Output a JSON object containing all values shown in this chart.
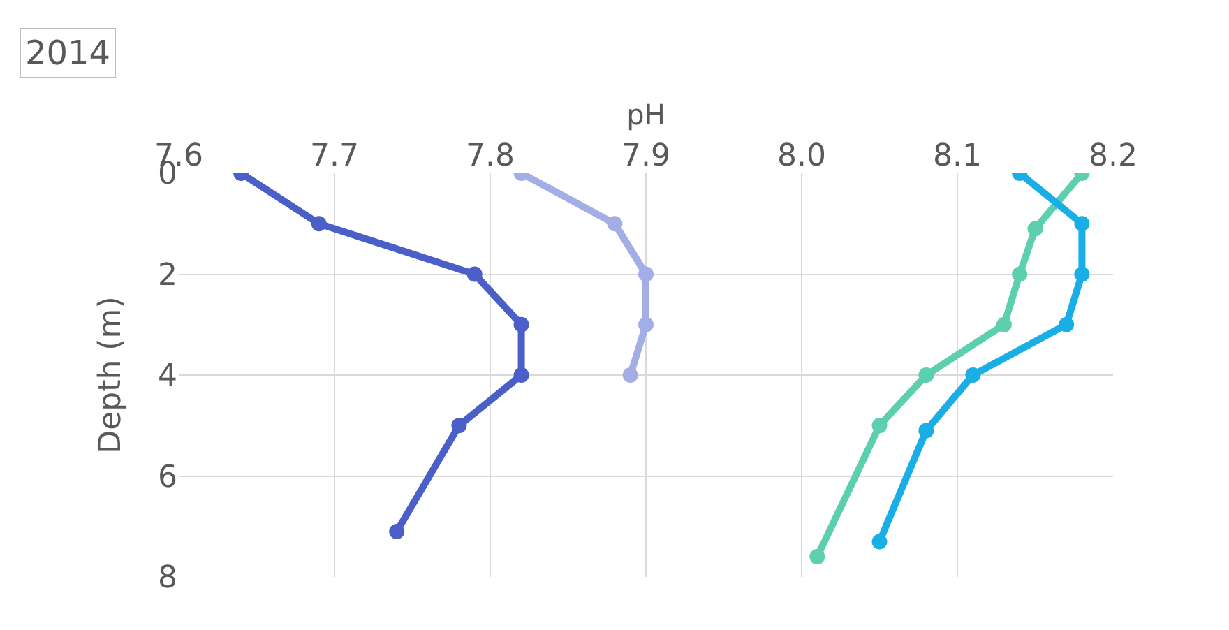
{
  "chart_data": {
    "type": "line",
    "xlabel": "pH",
    "ylabel": "Depth (m)",
    "annotations": [
      "2014"
    ],
    "xlim": [
      7.6,
      8.2
    ],
    "xticks": [
      {
        "value": 7.6,
        "label": "7.6"
      },
      {
        "value": 7.7,
        "label": "7.7"
      },
      {
        "value": 7.8,
        "label": "7.8"
      },
      {
        "value": 7.9,
        "label": "7.9"
      },
      {
        "value": 8.0,
        "label": "8.0"
      },
      {
        "value": 8.1,
        "label": "8.1"
      },
      {
        "value": 8.2,
        "label": "8.2"
      }
    ],
    "ylim": [
      8,
      0
    ],
    "yticks": [
      0,
      2,
      4,
      6,
      8
    ],
    "grid": true,
    "legend": false,
    "marker": "circle",
    "line_style": "solid",
    "series": [
      {
        "color": "#4a5fc7",
        "x": [
          7.64,
          7.69,
          7.79,
          7.82,
          7.82,
          7.78,
          7.74
        ],
        "values": [
          0,
          1,
          2,
          3,
          4,
          5,
          7.1
        ]
      },
      {
        "color": "#a3aee6",
        "x": [
          7.82,
          7.88,
          7.9,
          7.9,
          7.89
        ],
        "values": [
          0,
          1,
          2,
          3,
          4
        ]
      },
      {
        "color": "#5ccfae",
        "x": [
          8.18,
          8.15,
          8.14,
          8.13,
          8.08,
          8.05,
          8.01
        ],
        "values": [
          0,
          1.1,
          2,
          3,
          4,
          5,
          7.6
        ]
      },
      {
        "color": "#1aaee6",
        "x": [
          8.14,
          8.18,
          8.18,
          8.17,
          8.11,
          8.08,
          8.05
        ],
        "values": [
          0,
          1,
          2,
          3,
          4,
          5.1,
          7.3
        ]
      }
    ]
  }
}
